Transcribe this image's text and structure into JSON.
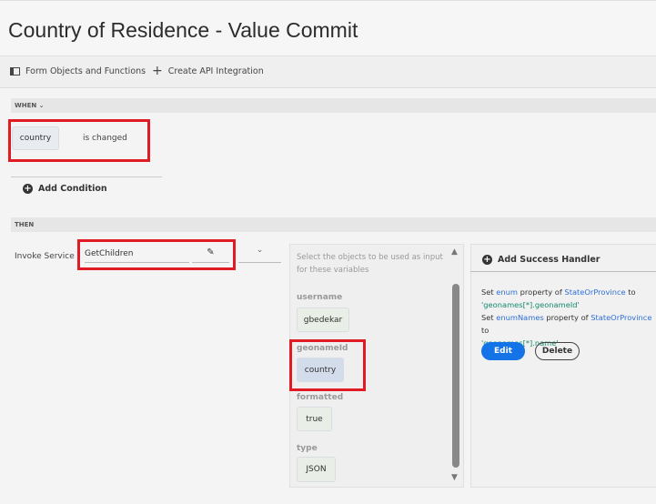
{
  "header": {
    "title": "Country of Residence - Value Commit"
  },
  "toolbar": {
    "form_objects": "Form Objects and Functions",
    "create_api": "Create API Integration"
  },
  "when": {
    "label": "WHEN",
    "object": "country",
    "condition": "is changed",
    "add_condition": "Add Condition"
  },
  "then": {
    "label": "THEN",
    "action": "Invoke Service",
    "service": "GetChildren"
  },
  "inputs": {
    "hint": "Select the objects to be used as input for these variables",
    "vars": [
      {
        "name": "username",
        "value": "gbedekar"
      },
      {
        "name": "geonameId",
        "value": "country"
      },
      {
        "name": "formatted",
        "value": "true"
      },
      {
        "name": "type",
        "value": "JSON"
      }
    ]
  },
  "success": {
    "title": "Add Success Handler",
    "l1a": "Set ",
    "l1b": "enum",
    "l1c": " property of ",
    "l1d": "StateOrProvince",
    "l1e": " to",
    "l2": "'geonames[*].geonameId'",
    "l3a": "Set ",
    "l3b": "enumNames",
    "l3c": " property of ",
    "l3d": "StateOrProvince",
    "l3e": " to",
    "l4": "'geonames[*].name'",
    "edit": "Edit",
    "delete": "Delete"
  },
  "colors": {
    "highlight": "#e01b24",
    "primary": "#1473e6"
  }
}
